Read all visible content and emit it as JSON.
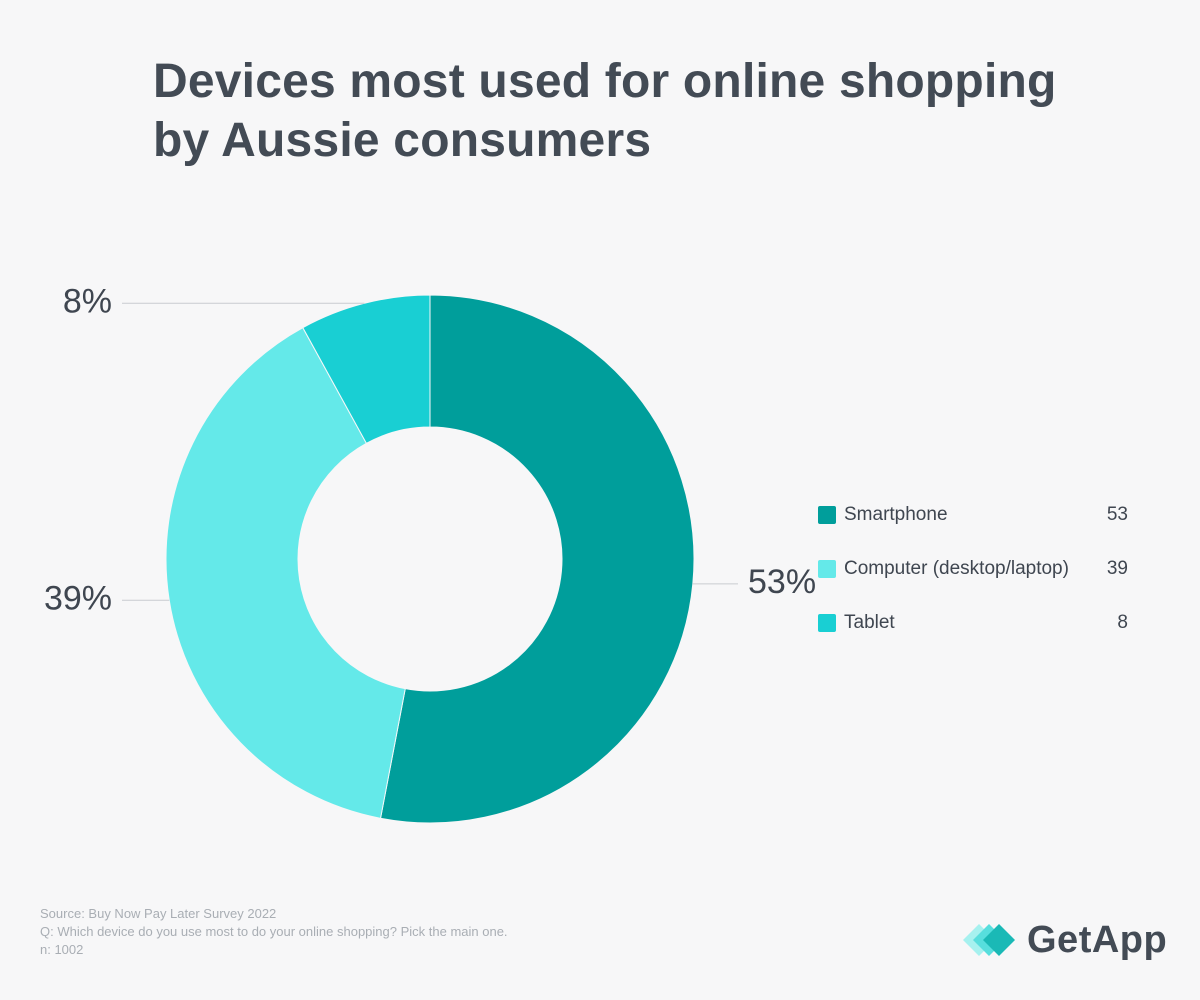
{
  "title": "Devices most used for online shopping by Aussie consumers",
  "chart_data": {
    "type": "donut",
    "title": "Devices most used for online shopping by Aussie consumers",
    "unit": "%",
    "categories": [
      "Smartphone",
      "Computer (desktop/laptop)",
      "Tablet"
    ],
    "values": [
      53,
      39,
      8
    ],
    "data_labels": [
      "53%",
      "39%",
      "8%"
    ],
    "colors": [
      "#009e9b",
      "#64e9e9",
      "#19cfd3"
    ],
    "legend_position": "right"
  },
  "legend": [
    {
      "label": "Smartphone",
      "value": "53",
      "color": "#009e9b"
    },
    {
      "label": "Computer (desktop/laptop)",
      "value": "39",
      "color": "#64e9e9"
    },
    {
      "label": "Tablet",
      "value": "8",
      "color": "#19cfd3"
    }
  ],
  "footnote": {
    "source": "Source: Buy Now Pay Later Survey 2022",
    "question": "Q: Which device do you use most to do your online shopping? Pick the main one.",
    "sample": "n: 1002"
  },
  "brand": {
    "name": "GetApp",
    "mark_colors": [
      "#a6f1ef",
      "#57dedd",
      "#1ab9b6"
    ]
  }
}
